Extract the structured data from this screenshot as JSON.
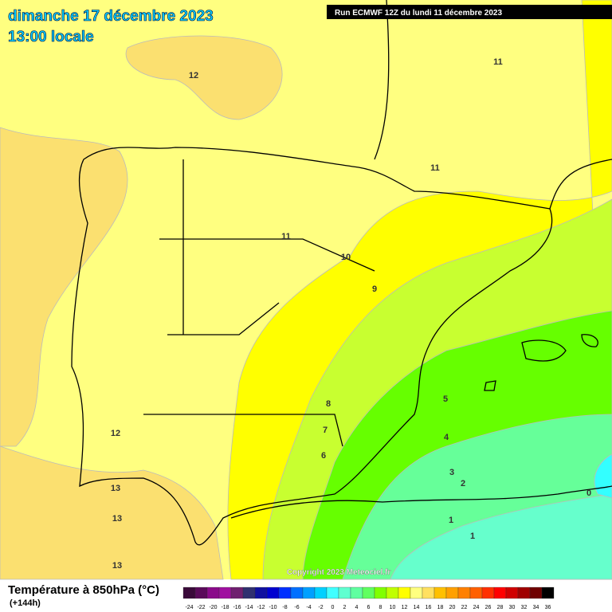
{
  "header": {
    "title": "dimanche 17 décembre 2023",
    "subtitle": "13:00 locale",
    "run": "Run ECMWF 12Z du lundi 11 décembre 2023"
  },
  "contour_labels": [
    12,
    11,
    11,
    11,
    10,
    9,
    8,
    7,
    6,
    5,
    4,
    3,
    2,
    1,
    1,
    0,
    12,
    13,
    13,
    13
  ],
  "copyright": "Copyright 2023 Meteociel.fr",
  "legend": {
    "title": "Température à 850hPa (°C)",
    "subtitle": "(+144h)",
    "ticks": [
      -24,
      -22,
      -20,
      -18,
      -16,
      -14,
      -12,
      -10,
      -8,
      -6,
      -4,
      -2,
      0,
      2,
      4,
      6,
      8,
      10,
      12,
      14,
      16,
      18,
      20,
      22,
      24,
      26,
      28,
      30,
      32,
      34,
      36
    ],
    "colors": [
      "#3a0a3a",
      "#5a0a5a",
      "#8a0a8a",
      "#a010a0",
      "#702070",
      "#303070",
      "#1010a0",
      "#0000d0",
      "#0030ff",
      "#0070ff",
      "#00a0ff",
      "#00d0ff",
      "#40ffff",
      "#60ffd0",
      "#60ffa0",
      "#60ff60",
      "#80ff00",
      "#c0ff00",
      "#ffff00",
      "#ffff80",
      "#ffe060",
      "#ffc000",
      "#ffa000",
      "#ff8000",
      "#ff6000",
      "#ff3000",
      "#ff0000",
      "#d00000",
      "#a00000",
      "#700000",
      "#000000"
    ]
  }
}
